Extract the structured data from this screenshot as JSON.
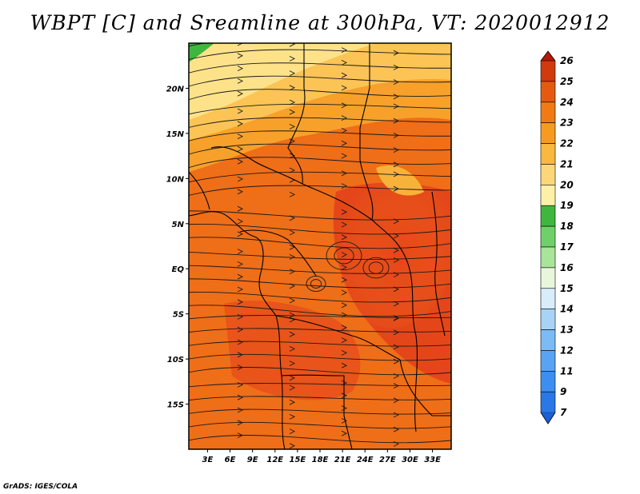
{
  "title": "WBPT [C] and Sreamline at 300hPa, VT: 2020012912",
  "footer": "GrADS: IGES/COLA",
  "map": {
    "lon_ticks": [
      "3E",
      "6E",
      "9E",
      "12E",
      "15E",
      "18E",
      "21E",
      "24E",
      "27E",
      "30E",
      "33E"
    ],
    "lon_values": [
      3,
      6,
      9,
      12,
      15,
      18,
      21,
      24,
      27,
      30,
      33
    ],
    "lat_ticks": [
      "20N",
      "15N",
      "10N",
      "5N",
      "EQ",
      "5S",
      "10S",
      "15S"
    ],
    "lat_values": [
      20,
      15,
      10,
      5,
      0,
      -5,
      -10,
      -15
    ],
    "lon_range": [
      0.5,
      35.5
    ],
    "lat_range": [
      -20,
      25
    ]
  },
  "colorbar": {
    "labels": [
      "7",
      "9",
      "11",
      "12",
      "13",
      "14",
      "15",
      "16",
      "17",
      "18",
      "19",
      "20",
      "21",
      "22",
      "23",
      "24",
      "25",
      "26"
    ],
    "colors": [
      "#1a5fd6",
      "#2a78e6",
      "#3c8ff0",
      "#5aa3f2",
      "#7dbbf5",
      "#a8d3f7",
      "#d8ecfa",
      "#e8f7dc",
      "#a8e49a",
      "#6fd06a",
      "#3fb73e",
      "#fff0a8",
      "#fcd77a",
      "#f9b940",
      "#f79a20",
      "#f27a14",
      "#e65a10",
      "#d03a0c",
      "#b41808"
    ]
  }
}
